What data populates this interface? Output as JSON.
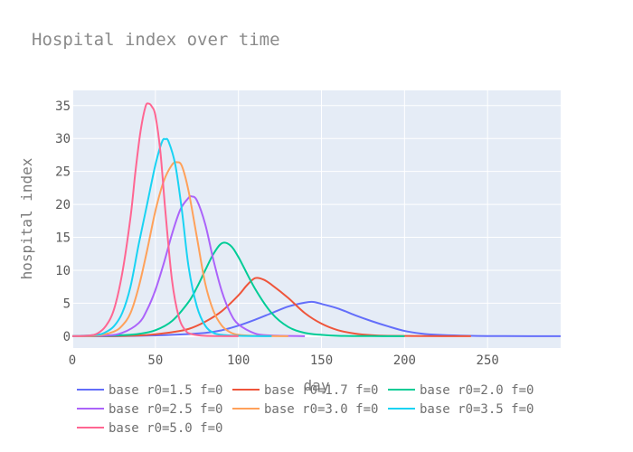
{
  "chart_data": {
    "type": "line",
    "title": "Hospital index over time",
    "xlabel": "day",
    "ylabel": "hospital index",
    "xlim": [
      0,
      294
    ],
    "ylim": [
      -1.8,
      37.3
    ],
    "xticks": [
      0,
      50,
      100,
      150,
      200,
      250
    ],
    "yticks": [
      0,
      5,
      10,
      15,
      20,
      25,
      30,
      35
    ],
    "grid": true,
    "legend_position": "bottom",
    "series": [
      {
        "name": "base r0=1.5 f=0",
        "color": "#636efa",
        "x": [
          0,
          20,
          40,
          60,
          80,
          90,
          100,
          110,
          120,
          130,
          140,
          145,
          150,
          160,
          170,
          180,
          190,
          200,
          210,
          220,
          240,
          260,
          294
        ],
        "y": [
          0,
          0,
          0.05,
          0.2,
          0.5,
          0.9,
          1.6,
          2.5,
          3.5,
          4.5,
          5.1,
          5.2,
          4.9,
          4.2,
          3.2,
          2.3,
          1.5,
          0.8,
          0.4,
          0.2,
          0.05,
          0.01,
          0
        ]
      },
      {
        "name": "base r0=1.7 f=0",
        "color": "#ef553b",
        "x": [
          0,
          20,
          40,
          50,
          60,
          70,
          80,
          90,
          100,
          105,
          110,
          115,
          120,
          130,
          140,
          150,
          160,
          170,
          180,
          190,
          210,
          240
        ],
        "y": [
          0,
          0,
          0.1,
          0.3,
          0.6,
          1.1,
          2.2,
          3.8,
          6.2,
          7.7,
          8.8,
          8.6,
          7.8,
          5.8,
          3.5,
          1.9,
          0.9,
          0.4,
          0.15,
          0.05,
          0.01,
          0
        ]
      },
      {
        "name": "base r0=2.0 f=0",
        "color": "#00cc96",
        "x": [
          0,
          20,
          30,
          40,
          50,
          60,
          70,
          75,
          80,
          85,
          90,
          95,
          100,
          110,
          120,
          130,
          140,
          150,
          160,
          180,
          200
        ],
        "y": [
          0,
          0.05,
          0.15,
          0.35,
          0.9,
          2.3,
          5.2,
          7.4,
          10.0,
          12.5,
          14.1,
          13.8,
          12.0,
          7.2,
          3.5,
          1.4,
          0.5,
          0.2,
          0.05,
          0.01,
          0
        ]
      },
      {
        "name": "base r0=2.5 f=0",
        "color": "#ab63fa",
        "x": [
          0,
          20,
          30,
          40,
          45,
          50,
          55,
          60,
          65,
          70,
          72,
          75,
          80,
          85,
          90,
          95,
          100,
          110,
          120,
          140
        ],
        "y": [
          0,
          0.1,
          0.5,
          2.0,
          4.0,
          7.0,
          11.0,
          15.5,
          19.2,
          21.0,
          21.2,
          20.6,
          17.0,
          11.5,
          6.8,
          3.6,
          1.8,
          0.4,
          0.1,
          0
        ]
      },
      {
        "name": "base r0=3.0 f=0",
        "color": "#ffa15a",
        "x": [
          0,
          15,
          25,
          30,
          35,
          40,
          45,
          50,
          55,
          60,
          63,
          66,
          70,
          75,
          80,
          85,
          90,
          95,
          100,
          110,
          130
        ],
        "y": [
          0,
          0.1,
          0.7,
          1.6,
          3.5,
          7.5,
          13.0,
          19.0,
          23.5,
          26.0,
          26.4,
          25.8,
          22.0,
          15.0,
          8.0,
          3.8,
          1.6,
          0.6,
          0.2,
          0.05,
          0
        ]
      },
      {
        "name": "base r0=3.5 f=0",
        "color": "#19d3f3",
        "x": [
          0,
          15,
          20,
          25,
          30,
          35,
          40,
          45,
          50,
          54,
          56,
          58,
          62,
          66,
          70,
          75,
          80,
          85,
          90,
          100,
          120
        ],
        "y": [
          0,
          0.2,
          0.6,
          1.5,
          3.5,
          7.5,
          14.0,
          20.0,
          26.0,
          29.5,
          29.9,
          29.5,
          26.0,
          19.0,
          10.5,
          4.5,
          1.6,
          0.5,
          0.2,
          0.05,
          0
        ]
      },
      {
        "name": "base r0=5.0 f=0",
        "color": "#ff6692",
        "x": [
          0,
          10,
          15,
          20,
          25,
          30,
          35,
          38,
          41,
          44,
          46,
          48,
          50,
          53,
          56,
          60,
          64,
          68,
          72,
          80,
          100
        ],
        "y": [
          0,
          0.1,
          0.4,
          1.5,
          4.0,
          9.5,
          18.0,
          25.0,
          31.0,
          34.8,
          35.3,
          34.8,
          33.5,
          28.0,
          19.0,
          8.5,
          3.0,
          0.9,
          0.3,
          0.05,
          0
        ]
      }
    ]
  }
}
